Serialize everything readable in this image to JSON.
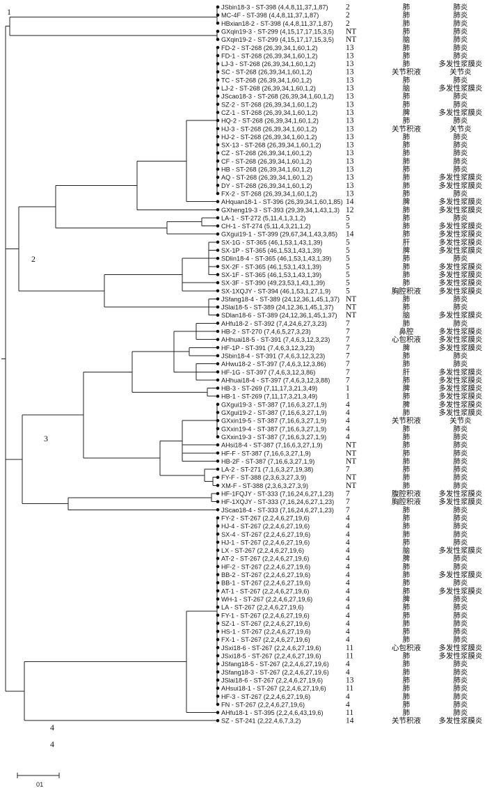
{
  "dendrogram": {
    "cluster_labels": [
      "1",
      "2",
      "3",
      "4",
      "4"
    ],
    "scale_bar_label": "01",
    "leaves": [
      {
        "label": "JSbin18-3 - ST-398 (4,4,8,11,37,1,87)",
        "sero": "2",
        "src": "肺",
        "dx": "肺炎"
      },
      {
        "label": "MC-4F - ST-398 (4,4,8,11,37,1,87)",
        "sero": "2",
        "src": "肺",
        "dx": "肺炎"
      },
      {
        "label": "HBxian18-2 - ST-398 (4,4,8,11,37,1,87)",
        "sero": "2",
        "src": "肺",
        "dx": "肺炎"
      },
      {
        "label": "GXqin19-3 - ST-299 (4,15,17,17,15,3,5)",
        "sero": "NT",
        "src": "肺",
        "dx": "肺炎"
      },
      {
        "label": "GXqin19-2 - ST-299 (4,15,17,17,15,3,5)",
        "sero": "NT",
        "src": "脑",
        "dx": "肺炎"
      },
      {
        "label": "FD-2 - ST-268 (26,39,34,1,60,1,2)",
        "sero": "13",
        "src": "肺",
        "dx": "肺炎"
      },
      {
        "label": "FD-1 - ST-268 (26,39,34,1,60,1,2)",
        "sero": "13",
        "src": "肺",
        "dx": "肺炎"
      },
      {
        "label": "LJ-3 - ST-268 (26,39,34,1,60,1,2)",
        "sero": "13",
        "src": "肺",
        "dx": "多发性浆膜炎"
      },
      {
        "label": "SC - ST-268 (26,39,34,1,60,1,2)",
        "sero": "13",
        "src": "关节积液",
        "dx": "关节炎"
      },
      {
        "label": "TC - ST-268 (26,39,34,1,60,1,2)",
        "sero": "13",
        "src": "肺",
        "dx": "肺炎"
      },
      {
        "label": "LJ-2 - ST-268 (26,39,34,1,60,1,2)",
        "sero": "13",
        "src": "脑",
        "dx": "多发性浆膜炎"
      },
      {
        "label": "JScao18-3 - ST-268 (26,39,34,1,60,1,2)",
        "sero": "13",
        "src": "肺",
        "dx": "肺炎"
      },
      {
        "label": "SZ-2 - ST-268 (26,39,34,1,60,1,2)",
        "sero": "13",
        "src": "肺",
        "dx": "肺炎"
      },
      {
        "label": "CZ-1 - ST-268 (26,39,34,1,60,1,2)",
        "sero": "13",
        "src": "脾",
        "dx": "多发性浆膜炎"
      },
      {
        "label": "HQ-2 - ST-268 (26,39,34,1,60,1,2)",
        "sero": "13",
        "src": "肺",
        "dx": "肺炎"
      },
      {
        "label": "HJ-3 - ST-268 (26,39,34,1,60,1,2)",
        "sero": "13",
        "src": "关节积液",
        "dx": "关节炎"
      },
      {
        "label": "HJ-2 - ST-268 (26,39,34,1,60,1,2)",
        "sero": "13",
        "src": "肺",
        "dx": "肺炎"
      },
      {
        "label": "SX-13 - ST-268 (26,39,34,1,60,1,2)",
        "sero": "13",
        "src": "肺",
        "dx": "肺炎"
      },
      {
        "label": "CZ - ST-268 (26,39,34,1,60,1,2)",
        "sero": "13",
        "src": "肺",
        "dx": "肺炎"
      },
      {
        "label": "CF - ST-268 (26,39,34,1,60,1,2)",
        "sero": "13",
        "src": "肺",
        "dx": "肺炎"
      },
      {
        "label": "HB - ST-268 (26,39,34,1,60,1,2)",
        "sero": "13",
        "src": "肺",
        "dx": "肺炎"
      },
      {
        "label": "AQ - ST-268 (26,39,34,1,60,1,2)",
        "sero": "13",
        "src": "肺",
        "dx": "多发性浆膜炎"
      },
      {
        "label": "DY - ST-268 (26,39,34,1,60,1,2)",
        "sero": "13",
        "src": "肺",
        "dx": "多发性浆膜炎"
      },
      {
        "label": "FX-2 - ST-268 (26,39,34,1,60,1,2)",
        "sero": "13",
        "src": "肺",
        "dx": "肺炎"
      },
      {
        "label": "AHquan18-1 - ST-396 (26,39,34,1,60,1,85)",
        "sero": "14",
        "src": "脾",
        "dx": "多发性浆膜炎"
      },
      {
        "label": "GXheng19-3 - ST-393 (29,39,34,1,43,1,3)",
        "sero": "12",
        "src": "肺",
        "dx": "多发性浆膜炎"
      },
      {
        "label": "LA-1 - ST-272 (5,11,4,1,3,1,2)",
        "sero": "5",
        "src": "肺",
        "dx": "肺炎"
      },
      {
        "label": "CH-1 - ST-274 (5,11,4,3,21,1,2)",
        "sero": "5",
        "src": "肺",
        "dx": "多发性浆膜炎"
      },
      {
        "label": "GXgui19-1 - ST-399 (29,67,34,1,43,3,85)",
        "sero": "14",
        "src": "肺",
        "dx": "多发性浆膜炎"
      },
      {
        "label": "SX-1G - ST-365 (46,1,53,1,43,1,39)",
        "sero": "5",
        "src": "肝",
        "dx": "多发性浆膜炎"
      },
      {
        "label": "SX-1P - ST-365 (46,1,53,1,43,1,39)",
        "sero": "5",
        "src": "脾",
        "dx": "多发性浆膜炎"
      },
      {
        "label": "SDlin18-4 - ST-365 (46,1,53,1,43,1,39)",
        "sero": "5",
        "src": "肺",
        "dx": "肺炎"
      },
      {
        "label": "SX-2F - ST-365 (46,1,53,1,43,1,39)",
        "sero": "5",
        "src": "肺",
        "dx": "多发性浆膜炎"
      },
      {
        "label": "SX-1F - ST-365 (46,1,53,1,43,1,39)",
        "sero": "5",
        "src": "肺",
        "dx": "多发性浆膜炎"
      },
      {
        "label": "SX-3F - ST-390 (49,23,53,1,43,1,39)",
        "sero": "5",
        "src": "肺",
        "dx": "多发性浆膜炎"
      },
      {
        "label": "SX-1XQJY - ST-394 (46,1,53,1,27,1,9)",
        "sero": "5",
        "src": "胸腔积液",
        "dx": "多发性浆膜炎"
      },
      {
        "label": "JSfang18-4 - ST-389 (24,12,36,1,45,1,37)",
        "sero": "NT",
        "src": "肺",
        "dx": "肺炎"
      },
      {
        "label": "JSlai18-5 - ST-389 (24,12,36,1,45,1,37)",
        "sero": "NT",
        "src": "肺",
        "dx": "肺炎"
      },
      {
        "label": "SDlan18-6 - ST-389 (24,12,36,1,45,1,37)",
        "sero": "NT",
        "src": "脑",
        "dx": "多发性浆膜炎"
      },
      {
        "label": "AHfu18-2 - ST-392 (7,4,24,6,27,3,23)",
        "sero": "7",
        "src": "肺",
        "dx": "肺炎"
      },
      {
        "label": "HB-2 - ST-270 (7,4,6,5,27,3,23)",
        "sero": "7",
        "src": "鼻腔",
        "dx": "多发性浆膜炎"
      },
      {
        "label": "AHhuai18-5 - ST-391 (7,4,6,3,12,3,23)",
        "sero": "7",
        "src": "心包积液",
        "dx": "多发性浆膜炎"
      },
      {
        "label": "HF-1P - ST-391 (7,4,6,3,12,3,23)",
        "sero": "7",
        "src": "脾",
        "dx": "多发性浆膜炎"
      },
      {
        "label": "JSbin18-4 - ST-391 (7,4,6,3,12,3,23)",
        "sero": "7",
        "src": "肺",
        "dx": "肺炎"
      },
      {
        "label": "AHwu18-2 - ST-397 (7,4,6,3,12,3,86)",
        "sero": "7",
        "src": "肺",
        "dx": "肺炎"
      },
      {
        "label": "HF-1G - ST-397 (7,4,6,3,12,3,86)",
        "sero": "7",
        "src": "肝",
        "dx": "多发性浆膜炎"
      },
      {
        "label": "AHhuai18-4 - ST-397 (7,4,6,3,12,3,88)",
        "sero": "7",
        "src": "肺",
        "dx": "多发性浆膜炎"
      },
      {
        "label": "HB-3 - ST-269 (7,11,17,3,21,3,49)",
        "sero": "1",
        "src": "脾",
        "dx": "多发性浆膜炎"
      },
      {
        "label": "HB-1 - ST-269 (7,11,17,3,21,3,49)",
        "sero": "1",
        "src": "肺",
        "dx": "多发性浆膜炎"
      },
      {
        "label": "GXgui19-3 - ST-387 (7,16,6,3,27,1,9)",
        "sero": "4",
        "src": "脾",
        "dx": "多发性浆膜炎"
      },
      {
        "label": "GXgui19-2 - ST-387 (7,16,6,3,27,1,9)",
        "sero": "4",
        "src": "肺",
        "dx": "多发性浆膜炎"
      },
      {
        "label": "GXxin19-5 - ST-387 (7,16,6,3,27,1,9)",
        "sero": "4",
        "src": "关节积液",
        "dx": "关节炎"
      },
      {
        "label": "GXxin19-4 - ST-387 (7,16,6,3,27,1,9)",
        "sero": "4",
        "src": "肺",
        "dx": "肺炎"
      },
      {
        "label": "GXxin19-3 - ST-387 (7,16,6,3,27,1,9)",
        "sero": "4",
        "src": "肺",
        "dx": "肺炎"
      },
      {
        "label": "AHsi18-4 - ST-387 (7,16,6,3,27,1,9)",
        "sero": "NT",
        "src": "肺",
        "dx": "肺炎"
      },
      {
        "label": "HF-F - ST-387 (7,16,6,3,27,1,9)",
        "sero": "NT",
        "src": "肺",
        "dx": "肺炎"
      },
      {
        "label": "HB-2F - ST-387 (7,16,6,3,27,1,9)",
        "sero": "NT",
        "src": "肺",
        "dx": "肺炎"
      },
      {
        "label": "LA-2 - ST-271 (7,1,6,3,27,19,38)",
        "sero": "7",
        "src": "肺",
        "dx": "肺炎"
      },
      {
        "label": "FY-F - ST-388 (2,3,6,3,27,3,9)",
        "sero": "NT",
        "src": "肺",
        "dx": "肺炎"
      },
      {
        "label": "XM-F - ST-388 (2,3,6,3,27,3,9)",
        "sero": "NT",
        "src": "肺",
        "dx": "肺炎"
      },
      {
        "label": "HF-1FQJY - ST-333 (7,16,24,6,27,1,23)",
        "sero": "7",
        "src": "腹腔积液",
        "dx": "多发性浆膜炎"
      },
      {
        "label": "HF-1XQJY - ST-333 (7,16,24,6,27,1,23)",
        "sero": "7",
        "src": "胸腔积液",
        "dx": "多发性浆膜炎"
      },
      {
        "label": "JScao18-4 - ST-333 (7,16,24,6,27,1,23)",
        "sero": "7",
        "src": "肺",
        "dx": "肺炎"
      },
      {
        "label": "FY-2 - ST-267 (2,2,4,6,27,19,6)",
        "sero": "4",
        "src": "肺",
        "dx": "肺炎"
      },
      {
        "label": "HJ-4 - ST-267 (2,2,4,6,27,19,6)",
        "sero": "4",
        "src": "肺",
        "dx": "肺炎"
      },
      {
        "label": "SX-4 - ST-267 (2,2,4,6,27,19,6)",
        "sero": "4",
        "src": "肺",
        "dx": "肺炎"
      },
      {
        "label": "HJ-1 - ST-267 (2,2,4,6,27,19,6)",
        "sero": "4",
        "src": "肺",
        "dx": "肺炎"
      },
      {
        "label": "LX - ST-267 (2,2,4,6,27,19,6)",
        "sero": "4",
        "src": "脑",
        "dx": "多发性浆膜炎"
      },
      {
        "label": "AT-2 - ST-267 (2,2,4,6,27,19,6)",
        "sero": "4",
        "src": "脾",
        "dx": "肺炎"
      },
      {
        "label": "HF-2 - ST-267 (2,2,4,6,27,19,6)",
        "sero": "4",
        "src": "肺",
        "dx": "肺炎"
      },
      {
        "label": "BB-2 - ST-267 (2,2,4,6,27,19,6)",
        "sero": "4",
        "src": "肺",
        "dx": "多发性浆膜炎"
      },
      {
        "label": "BB-1 - ST-267 (2,2,4,6,27,19,6)",
        "sero": "4",
        "src": "肺",
        "dx": "肺炎"
      },
      {
        "label": "AT-1 - ST-267 (2,2,4,6,27,19,6)",
        "sero": "4",
        "src": "肺",
        "dx": "多发性浆膜炎"
      },
      {
        "label": "WH-1 - ST-267 (2,2,4,6,27,19,6)",
        "sero": "4",
        "src": "脾",
        "dx": "肺炎"
      },
      {
        "label": "LA - ST-267 (2,2,4,6,27,19,6)",
        "sero": "4",
        "src": "肺",
        "dx": "肺炎"
      },
      {
        "label": "FY-1 - ST-267 (2,2,4,6,27,19,6)",
        "sero": "4",
        "src": "肺",
        "dx": "肺炎"
      },
      {
        "label": "SZ-1 - ST-267 (2,2,4,6,27,19,6)",
        "sero": "4",
        "src": "肺",
        "dx": "肺炎"
      },
      {
        "label": "HS-1 - ST-267 (2,2,4,6,27,19,6)",
        "sero": "4",
        "src": "肺",
        "dx": "肺炎"
      },
      {
        "label": "FX-1 - ST-267 (2,2,4,6,27,19,6)",
        "sero": "4",
        "src": "肺",
        "dx": "肺炎"
      },
      {
        "label": "JSxi18-6 - ST-267 (2,2,4,6,27,19,6)",
        "sero": "11",
        "src": "心包积液",
        "dx": "多发性浆膜炎"
      },
      {
        "label": "JSxi18-5 - ST-267 (2,2,4,6,27,19,6)",
        "sero": "11",
        "src": "肺",
        "dx": "多发性浆膜炎"
      },
      {
        "label": "JSfang18-5 - ST-267 (2,2,4,6,27,19,6)",
        "sero": "4",
        "src": "肺",
        "dx": "肺炎"
      },
      {
        "label": "JSfang18-3 - ST-267 (2,2,4,6,27,19,6)",
        "sero": "4",
        "src": "肺",
        "dx": "肺炎"
      },
      {
        "label": "JSlai18-6 - ST-267 (2,2,4,6,27,19,6)",
        "sero": "13",
        "src": "肺",
        "dx": "肺炎"
      },
      {
        "label": "AHsui18-1 - ST-267 (2,2,4,6,27,19,6)",
        "sero": "11",
        "src": "肺",
        "dx": "肺炎"
      },
      {
        "label": "HF-3 - ST-267 (2,2,4,6,27,19,6)",
        "sero": "4",
        "src": "肺",
        "dx": "肺炎"
      },
      {
        "label": "FN - ST-267 (2,2,4,6,27,19,6)",
        "sero": "4",
        "src": "肺",
        "dx": "肺炎"
      },
      {
        "label": "AHfu18-1 - ST-395 (2,2,4,6,43,19,6)",
        "sero": "11",
        "src": "肺",
        "dx": "肺炎"
      },
      {
        "label": "SZ - ST-241 (2,22,4,6,7,3,2)",
        "sero": "14",
        "src": "关节积液",
        "dx": "多发性浆膜炎"
      }
    ]
  }
}
